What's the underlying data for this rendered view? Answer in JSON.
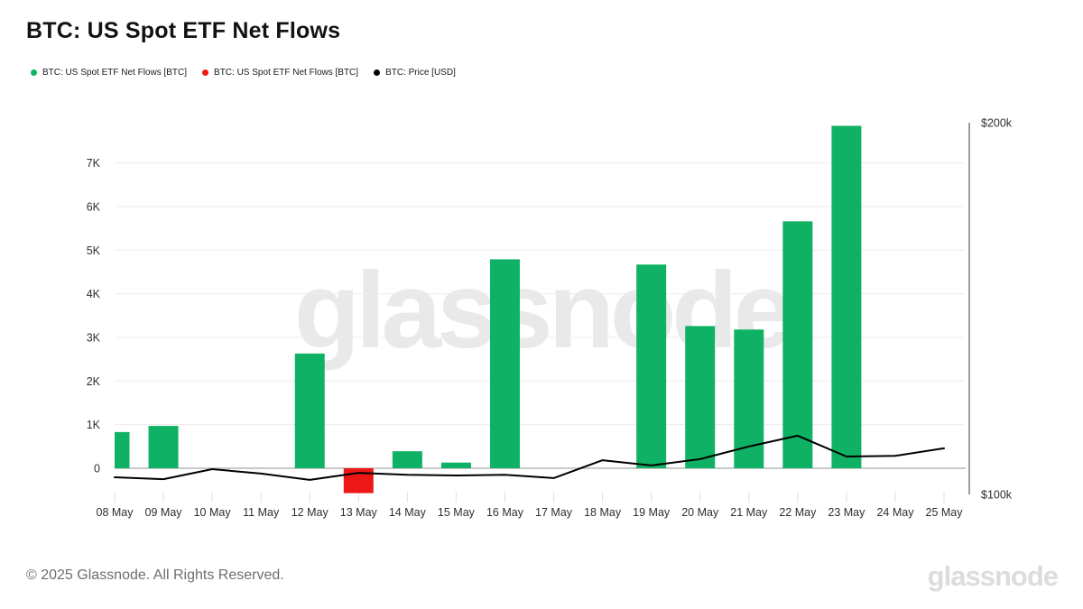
{
  "page": {
    "title": "BTC: US Spot ETF Net Flows"
  },
  "legend": {
    "items": [
      {
        "label": "BTC: US Spot ETF Net Flows [BTC]",
        "color": "#0fb264"
      },
      {
        "label": "BTC: US Spot ETF Net Flows [BTC]",
        "color": "#ed1717"
      },
      {
        "label": "BTC: Price [USD]",
        "color": "#000000"
      }
    ]
  },
  "watermark_text": "glassnode",
  "footer": {
    "copyright": "© 2025 Glassnode. All Rights Reserved.",
    "brand_logo_text": "glassnode"
  },
  "colors": {
    "positive_bar": "#0fb264",
    "negative_bar": "#ed1717",
    "price_line": "#000000",
    "grid_line": "#ececec",
    "zero_line": "#c9c9c9",
    "axis_text": "#2e2e2e",
    "right_axis_line": "#7d7d7d",
    "tick_mark": "#e0e0e0"
  },
  "chart_data": {
    "type": "bar",
    "title": "BTC: US Spot ETF Net Flows",
    "categories": [
      "08 May",
      "09 May",
      "10 May",
      "11 May",
      "12 May",
      "13 May",
      "14 May",
      "15 May",
      "16 May",
      "17 May",
      "18 May",
      "19 May",
      "20 May",
      "21 May",
      "22 May",
      "23 May",
      "24 May",
      "25 May"
    ],
    "series": [
      {
        "name": "BTC: US Spot ETF Net Flows [BTC]",
        "type": "bar",
        "unit": "BTC",
        "values": [
          830,
          970,
          0,
          0,
          2630,
          -570,
          390,
          130,
          4790,
          0,
          0,
          4670,
          3260,
          3180,
          5660,
          7850,
          0,
          0
        ]
      },
      {
        "name": "BTC: Price [USD]",
        "type": "line",
        "unit": "USD",
        "values": [
          104600,
          104100,
          106800,
          105600,
          103900,
          105800,
          105300,
          105100,
          105300,
          104400,
          109200,
          107800,
          109500,
          112900,
          115800,
          110200,
          110400,
          112400
        ]
      }
    ],
    "left_axis": {
      "tick_labels": [
        "0",
        "1K",
        "2K",
        "3K",
        "4K",
        "5K",
        "6K",
        "7K"
      ],
      "tick_values": [
        0,
        1000,
        2000,
        3000,
        4000,
        5000,
        6000,
        7000
      ],
      "range": [
        -830,
        8330
      ]
    },
    "right_axis": {
      "tick_labels": [
        "$100k",
        "$200k"
      ],
      "tick_values": [
        100000,
        200000
      ]
    },
    "grid": true,
    "legend_position": "top-left"
  }
}
